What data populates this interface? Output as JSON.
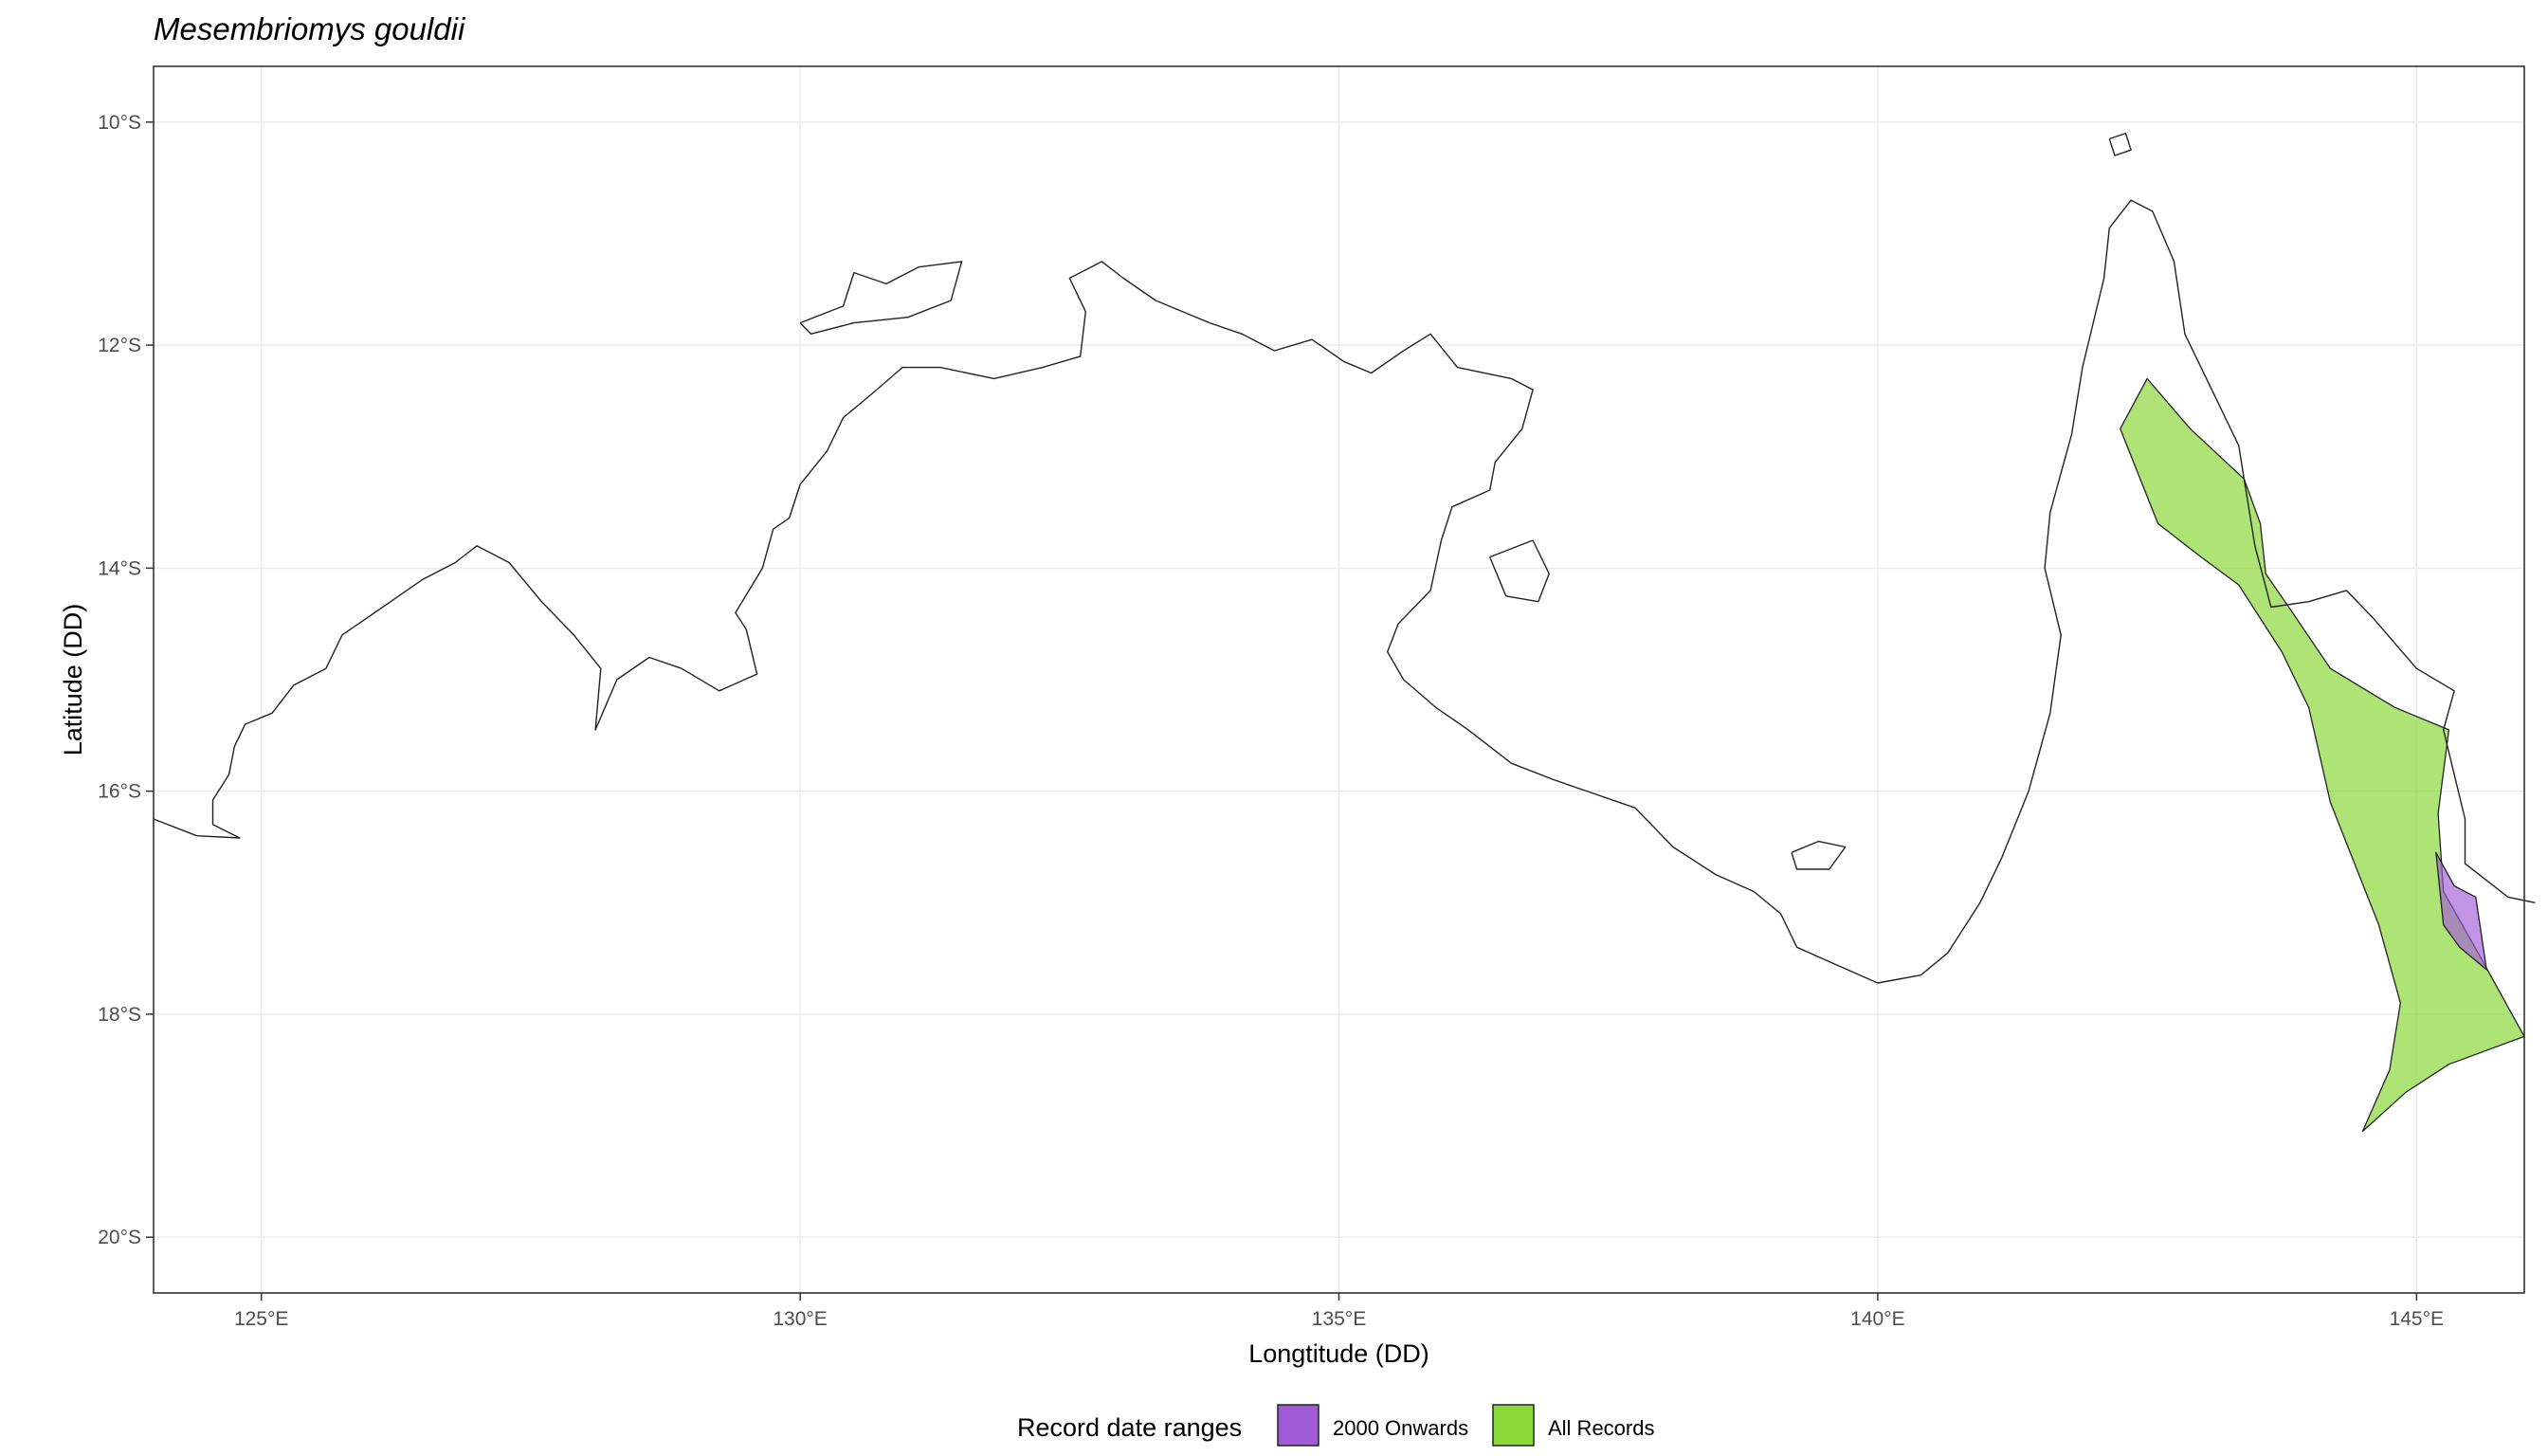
{
  "title": "Mesembriomys gouldii",
  "map": {
    "xlabel": "Longtitude (DD)",
    "ylabel": "Latitude (DD)",
    "xlim": [
      124,
      146
    ],
    "ylim": [
      -20.5,
      -9.5
    ],
    "x_ticks": [
      {
        "value": 125,
        "label": "125°E"
      },
      {
        "value": 130,
        "label": "130°E"
      },
      {
        "value": 135,
        "label": "135°E"
      },
      {
        "value": 140,
        "label": "140°E"
      },
      {
        "value": 145,
        "label": "145°E"
      }
    ],
    "y_ticks": [
      {
        "value": -10,
        "label": "10°S"
      },
      {
        "value": -12,
        "label": "12°S"
      },
      {
        "value": -14,
        "label": "14°S"
      },
      {
        "value": -16,
        "label": "16°S"
      },
      {
        "value": -18,
        "label": "18°S"
      },
      {
        "value": -20,
        "label": "20°S"
      }
    ],
    "grid": true,
    "coastlines": [
      {
        "name": "northern-territory-coast",
        "points": [
          [
            124.0,
            -16.25
          ],
          [
            124.4,
            -16.4
          ],
          [
            124.8,
            -16.42
          ],
          [
            124.55,
            -16.3
          ],
          [
            124.55,
            -16.08
          ],
          [
            124.7,
            -15.85
          ],
          [
            124.75,
            -15.6
          ],
          [
            124.85,
            -15.4
          ],
          [
            125.1,
            -15.3
          ],
          [
            125.3,
            -15.05
          ],
          [
            125.6,
            -14.9
          ],
          [
            125.75,
            -14.6
          ],
          [
            125.9,
            -14.5
          ],
          [
            126.2,
            -14.3
          ],
          [
            126.5,
            -14.1
          ],
          [
            126.8,
            -13.95
          ],
          [
            127.0,
            -13.8
          ],
          [
            127.3,
            -13.95
          ],
          [
            127.6,
            -14.3
          ],
          [
            127.9,
            -14.6
          ],
          [
            128.15,
            -14.9
          ],
          [
            128.1,
            -15.45
          ],
          [
            128.3,
            -15.0
          ],
          [
            128.6,
            -14.8
          ],
          [
            128.9,
            -14.9
          ],
          [
            129.25,
            -15.1
          ],
          [
            129.6,
            -14.95
          ],
          [
            129.5,
            -14.55
          ],
          [
            129.4,
            -14.4
          ],
          [
            129.65,
            -14.0
          ],
          [
            129.75,
            -13.65
          ],
          [
            129.9,
            -13.55
          ],
          [
            130.0,
            -13.25
          ],
          [
            130.25,
            -12.95
          ],
          [
            130.4,
            -12.65
          ],
          [
            130.65,
            -12.45
          ],
          [
            130.95,
            -12.2
          ],
          [
            131.3,
            -12.2
          ],
          [
            131.8,
            -12.3
          ],
          [
            132.25,
            -12.2
          ],
          [
            132.6,
            -12.1
          ],
          [
            132.65,
            -11.7
          ],
          [
            132.5,
            -11.4
          ],
          [
            132.8,
            -11.25
          ],
          [
            133.0,
            -11.4
          ],
          [
            133.3,
            -11.6
          ],
          [
            133.8,
            -11.8
          ],
          [
            134.1,
            -11.9
          ],
          [
            134.4,
            -12.05
          ],
          [
            134.75,
            -11.95
          ],
          [
            135.05,
            -12.15
          ],
          [
            135.3,
            -12.25
          ],
          [
            135.6,
            -12.05
          ],
          [
            135.85,
            -11.9
          ],
          [
            136.1,
            -12.2
          ],
          [
            136.6,
            -12.3
          ],
          [
            136.8,
            -12.4
          ],
          [
            136.7,
            -12.75
          ],
          [
            136.45,
            -13.05
          ],
          [
            136.4,
            -13.3
          ],
          [
            136.05,
            -13.45
          ],
          [
            135.95,
            -13.75
          ],
          [
            135.85,
            -14.2
          ],
          [
            135.55,
            -14.5
          ],
          [
            135.45,
            -14.75
          ],
          [
            135.6,
            -15.0
          ],
          [
            135.9,
            -15.25
          ],
          [
            136.2,
            -15.45
          ],
          [
            136.6,
            -15.75
          ],
          [
            137.0,
            -15.9
          ],
          [
            137.3,
            -16.0
          ],
          [
            137.75,
            -16.15
          ],
          [
            138.1,
            -16.5
          ],
          [
            138.5,
            -16.75
          ],
          [
            138.85,
            -16.9
          ],
          [
            139.1,
            -17.1
          ],
          [
            139.25,
            -17.4
          ],
          [
            139.6,
            -17.55
          ],
          [
            140.0,
            -17.72
          ],
          [
            140.4,
            -17.65
          ],
          [
            140.65,
            -17.45
          ],
          [
            140.95,
            -17.0
          ],
          [
            141.15,
            -16.6
          ],
          [
            141.4,
            -16.0
          ],
          [
            141.6,
            -15.3
          ],
          [
            141.7,
            -14.6
          ],
          [
            141.55,
            -14.0
          ],
          [
            141.6,
            -13.5
          ],
          [
            141.8,
            -12.8
          ],
          [
            141.9,
            -12.2
          ],
          [
            142.1,
            -11.4
          ],
          [
            142.15,
            -10.95
          ],
          [
            142.35,
            -10.7
          ],
          [
            142.55,
            -10.8
          ],
          [
            142.75,
            -11.25
          ],
          [
            142.85,
            -11.9
          ],
          [
            143.1,
            -12.4
          ],
          [
            143.35,
            -12.9
          ],
          [
            143.5,
            -13.8
          ],
          [
            143.65,
            -14.35
          ],
          [
            144.0,
            -14.3
          ],
          [
            144.35,
            -14.2
          ],
          [
            144.6,
            -14.45
          ],
          [
            145.0,
            -14.9
          ],
          [
            145.35,
            -15.1
          ],
          [
            145.25,
            -15.45
          ],
          [
            145.45,
            -16.25
          ],
          [
            145.45,
            -16.65
          ],
          [
            145.85,
            -16.95
          ],
          [
            146.1,
            -17.0
          ]
        ]
      },
      {
        "name": "tiwi-islands",
        "points": [
          [
            130.0,
            -11.8
          ],
          [
            130.4,
            -11.65
          ],
          [
            130.5,
            -11.35
          ],
          [
            130.8,
            -11.45
          ],
          [
            131.1,
            -11.3
          ],
          [
            131.5,
            -11.25
          ],
          [
            131.4,
            -11.6
          ],
          [
            131.0,
            -11.75
          ],
          [
            130.5,
            -11.8
          ],
          [
            130.1,
            -11.9
          ],
          [
            130.0,
            -11.8
          ]
        ]
      },
      {
        "name": "groote-eylandt",
        "points": [
          [
            136.4,
            -13.9
          ],
          [
            136.8,
            -13.75
          ],
          [
            136.95,
            -14.05
          ],
          [
            136.85,
            -14.3
          ],
          [
            136.55,
            -14.25
          ],
          [
            136.4,
            -13.9
          ]
        ]
      },
      {
        "name": "mornington-island",
        "points": [
          [
            139.2,
            -16.55
          ],
          [
            139.45,
            -16.45
          ],
          [
            139.7,
            -16.5
          ],
          [
            139.55,
            -16.7
          ],
          [
            139.25,
            -16.7
          ],
          [
            139.2,
            -16.55
          ]
        ]
      },
      {
        "name": "torres-strait-island",
        "points": [
          [
            142.15,
            -10.15
          ],
          [
            142.3,
            -10.1
          ],
          [
            142.35,
            -10.25
          ],
          [
            142.2,
            -10.3
          ],
          [
            142.15,
            -10.15
          ]
        ]
      }
    ],
    "ranges": [
      {
        "label": "All Records",
        "color": "#8cd93a",
        "fill_opacity": 0.7,
        "points": [
          [
            142.25,
            -12.75
          ],
          [
            142.5,
            -12.3
          ],
          [
            142.9,
            -12.75
          ],
          [
            143.4,
            -13.2
          ],
          [
            143.55,
            -13.6
          ],
          [
            143.6,
            -14.05
          ],
          [
            143.85,
            -14.4
          ],
          [
            144.2,
            -14.9
          ],
          [
            144.8,
            -15.25
          ],
          [
            145.3,
            -15.45
          ],
          [
            145.2,
            -16.2
          ],
          [
            145.25,
            -16.9
          ],
          [
            145.6,
            -17.5
          ],
          [
            146.0,
            -18.2
          ],
          [
            145.3,
            -18.45
          ],
          [
            144.9,
            -18.7
          ],
          [
            144.5,
            -19.05
          ],
          [
            144.75,
            -18.5
          ],
          [
            144.85,
            -17.9
          ],
          [
            144.65,
            -17.2
          ],
          [
            144.2,
            -16.1
          ],
          [
            144.0,
            -15.25
          ],
          [
            143.75,
            -14.75
          ],
          [
            143.35,
            -14.15
          ],
          [
            143.0,
            -13.9
          ],
          [
            142.6,
            -13.6
          ],
          [
            142.25,
            -12.75
          ]
        ]
      },
      {
        "label": "2000 Onwards",
        "color": "#a05ad8",
        "fill_opacity": 0.65,
        "points": [
          [
            145.18,
            -16.55
          ],
          [
            145.35,
            -16.85
          ],
          [
            145.55,
            -16.95
          ],
          [
            145.65,
            -17.6
          ],
          [
            145.4,
            -17.4
          ],
          [
            145.25,
            -17.2
          ],
          [
            145.18,
            -16.55
          ]
        ]
      }
    ]
  },
  "legend": {
    "title": "Record date ranges",
    "position": "bottom",
    "items": [
      {
        "label": "2000 Onwards",
        "color": "#a05ad8"
      },
      {
        "label": "All Records",
        "color": "#8cd93a"
      }
    ]
  }
}
